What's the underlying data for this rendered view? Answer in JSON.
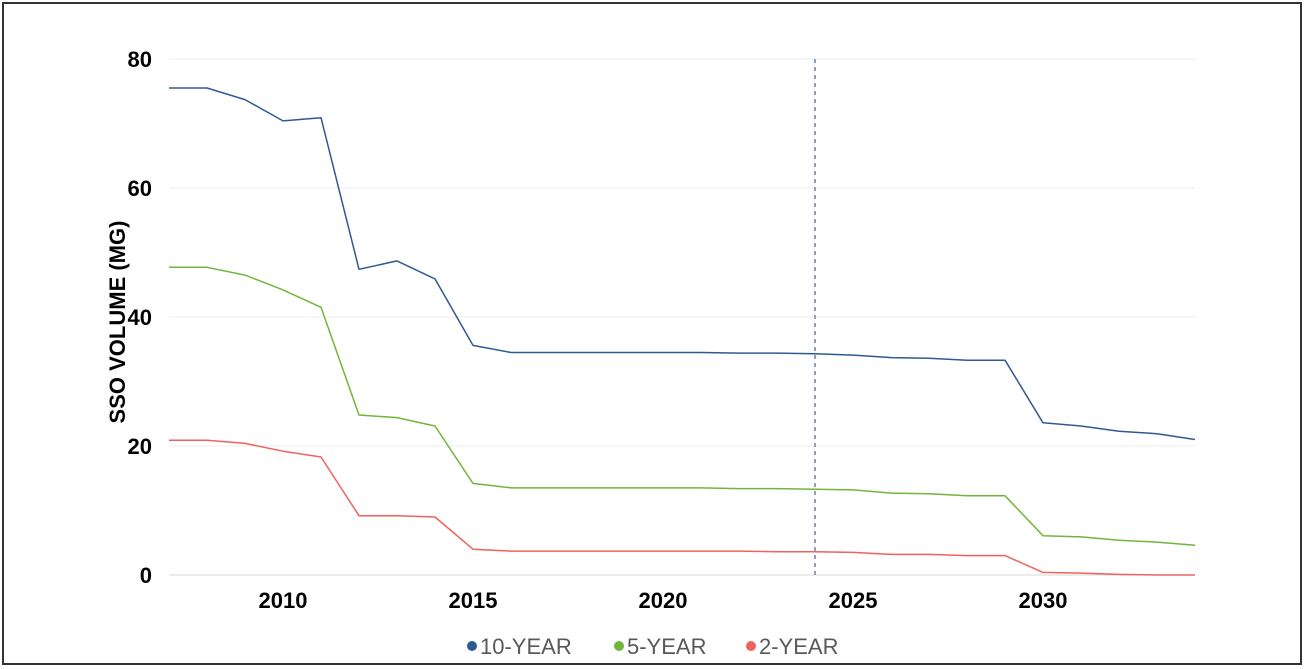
{
  "chart_data": {
    "type": "line",
    "title": "",
    "xlabel": "",
    "ylabel": "SSO VOLUME (MG)",
    "xlim": [
      2007,
      2034
    ],
    "ylim": [
      0,
      80
    ],
    "x_ticks": [
      2010,
      2015,
      2020,
      2025,
      2030
    ],
    "y_ticks": [
      0,
      20,
      40,
      60,
      80
    ],
    "grid": "horizontal",
    "legend_position": "bottom",
    "reference_line_x": 2024,
    "reference_line_color": "#8CA3BD",
    "x": [
      2007,
      2008,
      2009,
      2010,
      2011,
      2012,
      2013,
      2014,
      2015,
      2016,
      2017,
      2018,
      2019,
      2020,
      2021,
      2022,
      2023,
      2024,
      2025,
      2026,
      2027,
      2028,
      2029,
      2030,
      2031,
      2032,
      2033,
      2034
    ],
    "series": [
      {
        "name": "10-YEAR",
        "color": "#2E5A94",
        "values": [
          75.5,
          75.5,
          73.7,
          70.4,
          70.9,
          47.4,
          48.7,
          45.9,
          35.6,
          34.5,
          34.5,
          34.5,
          34.5,
          34.5,
          34.5,
          34.4,
          34.4,
          34.3,
          34.1,
          33.7,
          33.6,
          33.3,
          33.3,
          23.6,
          23.1,
          22.3,
          21.9,
          21.0
        ]
      },
      {
        "name": "5-YEAR",
        "color": "#71B63A",
        "values": [
          47.7,
          47.7,
          46.5,
          44.2,
          41.5,
          24.8,
          24.4,
          23.1,
          14.2,
          13.5,
          13.5,
          13.5,
          13.5,
          13.5,
          13.5,
          13.4,
          13.4,
          13.3,
          13.2,
          12.7,
          12.6,
          12.3,
          12.3,
          6.1,
          5.9,
          5.4,
          5.1,
          4.6
        ]
      },
      {
        "name": "2-YEAR",
        "color": "#F0625D",
        "values": [
          20.9,
          20.9,
          20.4,
          19.2,
          18.3,
          9.2,
          9.2,
          9.0,
          4.0,
          3.7,
          3.7,
          3.7,
          3.7,
          3.7,
          3.7,
          3.7,
          3.6,
          3.6,
          3.5,
          3.2,
          3.2,
          3.0,
          3.0,
          0.4,
          0.3,
          0.1,
          0.0,
          0.0
        ]
      }
    ]
  }
}
